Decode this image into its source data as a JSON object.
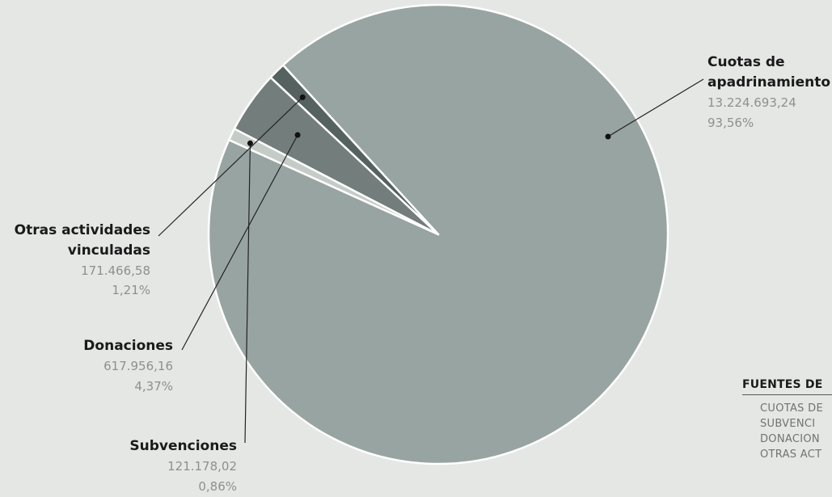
{
  "chart_data": {
    "type": "pie",
    "slices": [
      {
        "name": "Cuotas de apadrinamiento",
        "label_lines": [
          "Cuotas de",
          "apadrinamiento"
        ],
        "value": 13224693.24,
        "value_label": "13.224.693,24",
        "percent_label": "93,56%",
        "color": "#98a4a2"
      },
      {
        "name": "Subvenciones",
        "label_lines": [
          "Subvenciones"
        ],
        "value": 121178.02,
        "value_label": "121.178,02",
        "percent_label": "0,86%",
        "color": "#c5ccc7"
      },
      {
        "name": "Donaciones",
        "label_lines": [
          "Donaciones"
        ],
        "value": 617956.16,
        "value_label": "617.956,16",
        "percent_label": "4,37%",
        "color": "#737d7b"
      },
      {
        "name": "Otras actividades vinculadas",
        "label_lines": [
          "Otras actividades",
          "vinculadas"
        ],
        "value": 171466.58,
        "value_label": "171.466,58",
        "percent_label": "1,21%",
        "color": "#55625f"
      }
    ]
  },
  "legend": {
    "title": "FUENTES DE",
    "items": [
      "CUOTAS DE",
      "SUBVENCI",
      "DONACION",
      "OTRAS ACT"
    ]
  }
}
